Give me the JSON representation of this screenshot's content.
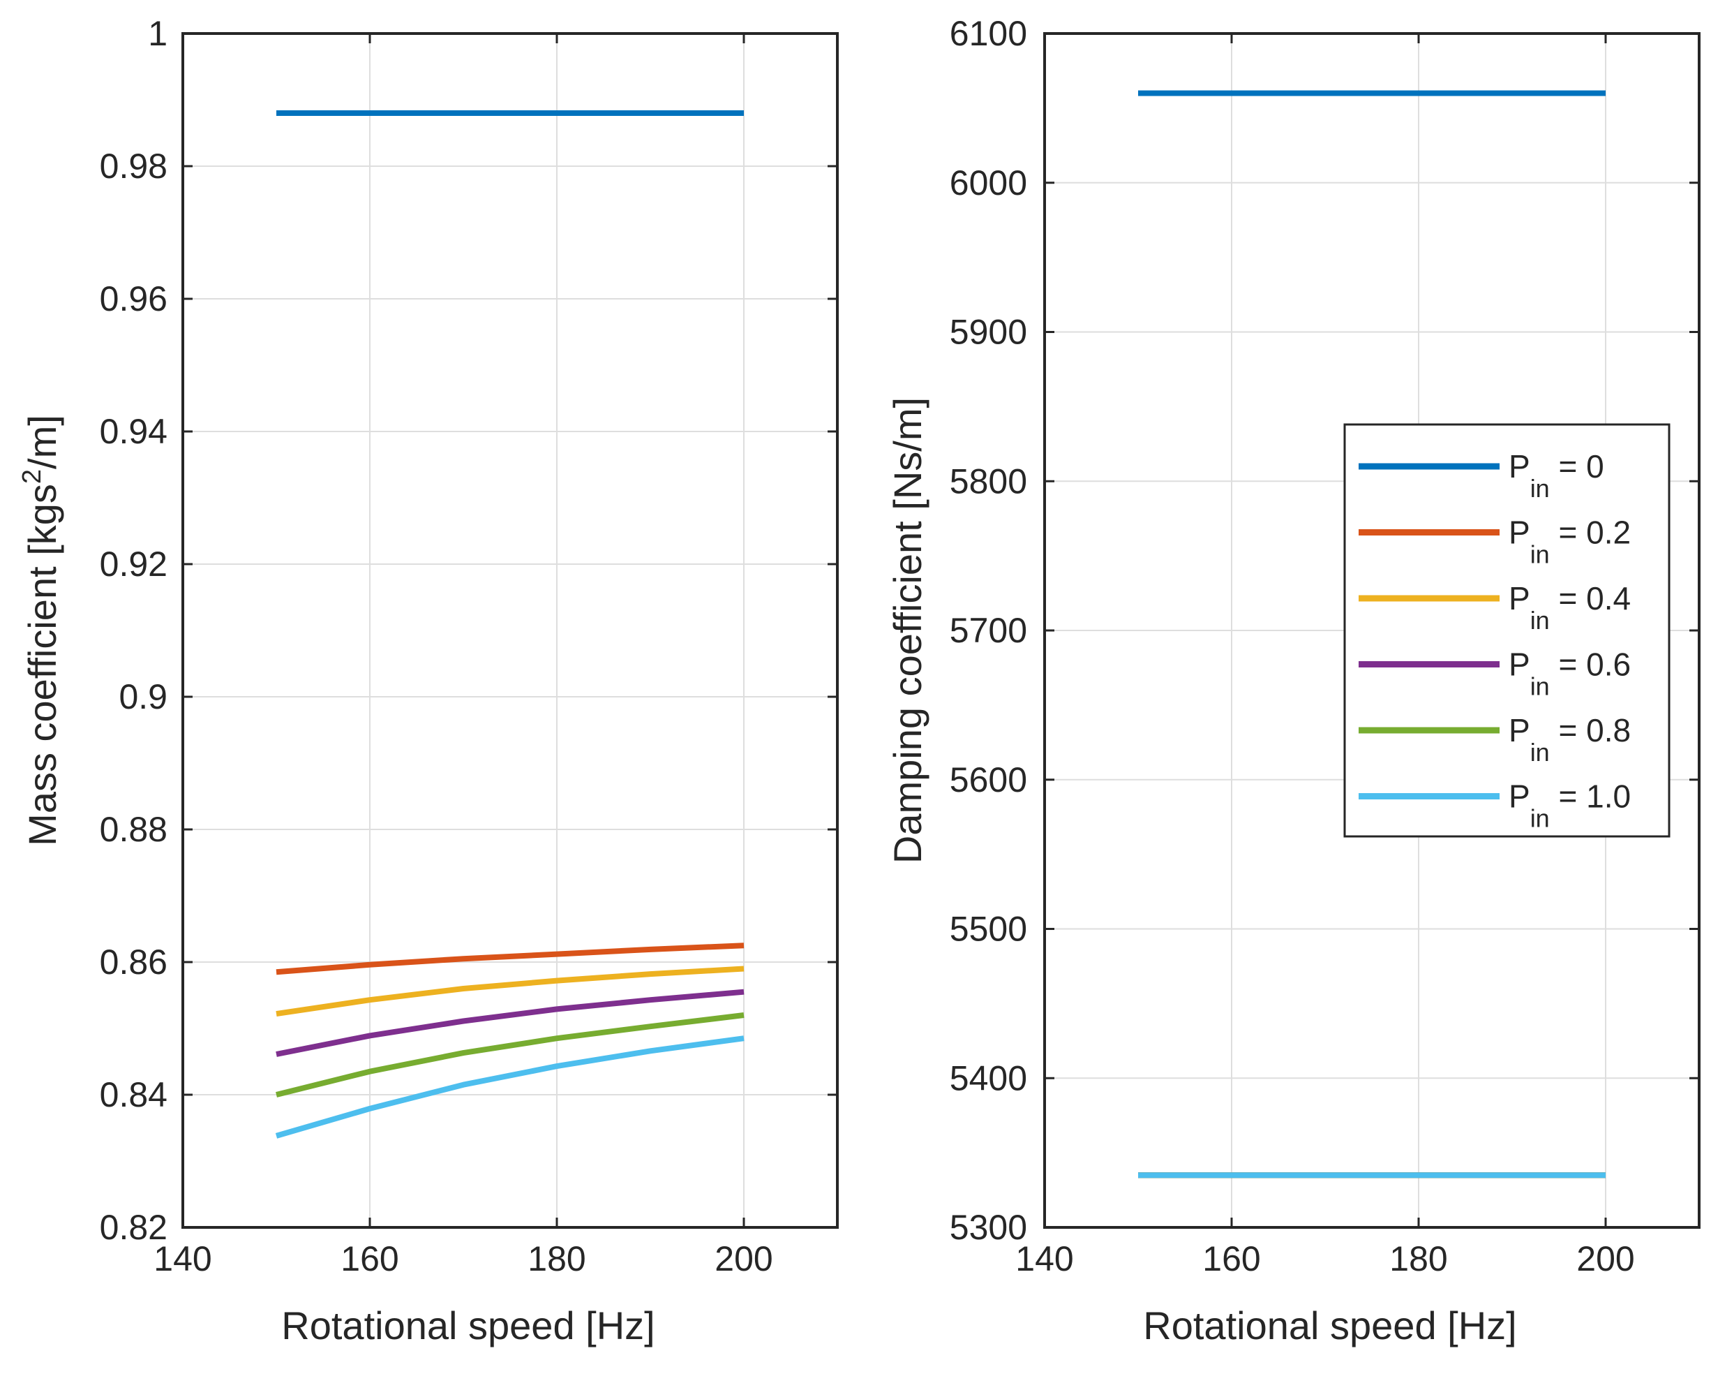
{
  "chart_data": [
    {
      "type": "line",
      "title": "",
      "xlabel": "Rotational speed [Hz]",
      "ylabel_prefix": "Mass coefficient [kgs",
      "ylabel_sup": "2",
      "ylabel_suffix": "/m]",
      "xlim": [
        140,
        210
      ],
      "ylim": [
        0.82,
        1.0
      ],
      "xticks": [
        140,
        160,
        180,
        200
      ],
      "xtick_labels": [
        "140",
        "160",
        "180",
        "200"
      ],
      "yticks": [
        0.82,
        0.84,
        0.86,
        0.88,
        0.9,
        0.92,
        0.94,
        0.96,
        0.98,
        1.0
      ],
      "ytick_labels": [
        "0.82",
        "0.84",
        "0.86",
        "0.88",
        "0.9",
        "0.92",
        "0.94",
        "0.96",
        "0.98",
        "1"
      ],
      "grid": true,
      "x": [
        150,
        160,
        170,
        180,
        190,
        200
      ],
      "series": [
        {
          "name": "P_in = 0",
          "color": "#0072BD",
          "values": [
            0.988,
            0.988,
            0.988,
            0.988,
            0.988,
            0.988
          ]
        },
        {
          "name": "P_in = 0.2",
          "color": "#D95319",
          "values": [
            0.8585,
            0.8596,
            0.8605,
            0.8612,
            0.8619,
            0.8625
          ]
        },
        {
          "name": "P_in = 0.4",
          "color": "#EDB120",
          "values": [
            0.8522,
            0.8543,
            0.856,
            0.8572,
            0.8582,
            0.859
          ]
        },
        {
          "name": "P_in = 0.6",
          "color": "#7E2F8E",
          "values": [
            0.8461,
            0.8489,
            0.8511,
            0.8529,
            0.8543,
            0.8555
          ]
        },
        {
          "name": "P_in = 0.8",
          "color": "#77AC30",
          "values": [
            0.84,
            0.8435,
            0.8463,
            0.8485,
            0.8503,
            0.852
          ]
        },
        {
          "name": "P_in = 1.0",
          "color": "#4DBEEE",
          "values": [
            0.8338,
            0.8379,
            0.8415,
            0.8443,
            0.8466,
            0.8485
          ]
        }
      ]
    },
    {
      "type": "line",
      "title": "",
      "xlabel": "Rotational speed [Hz]",
      "ylabel": "Damping coefficient [Ns/m]",
      "xlim": [
        140,
        210
      ],
      "ylim": [
        5300,
        6100
      ],
      "xticks": [
        140,
        160,
        180,
        200
      ],
      "xtick_labels": [
        "140",
        "160",
        "180",
        "200"
      ],
      "yticks": [
        5300,
        5400,
        5500,
        5600,
        5700,
        5800,
        5900,
        6000,
        6100
      ],
      "ytick_labels": [
        "5300",
        "5400",
        "5500",
        "5600",
        "5700",
        "5800",
        "5900",
        "6000",
        "6100"
      ],
      "grid": true,
      "x": [
        150,
        160,
        170,
        180,
        190,
        200
      ],
      "series": [
        {
          "name": "P_in = 0",
          "color": "#0072BD",
          "values": [
            6060,
            6060,
            6060,
            6060,
            6060,
            6060
          ]
        },
        {
          "name": "P_in = 0.2",
          "color": "#D95319",
          "values": [
            5335,
            5335,
            5335,
            5335,
            5335,
            5335
          ]
        },
        {
          "name": "P_in = 0.4",
          "color": "#EDB120",
          "values": [
            5335,
            5335,
            5335,
            5335,
            5335,
            5335
          ]
        },
        {
          "name": "P_in = 0.6",
          "color": "#7E2F8E",
          "values": [
            5335,
            5335,
            5335,
            5335,
            5335,
            5335
          ]
        },
        {
          "name": "P_in = 0.8",
          "color": "#77AC30",
          "values": [
            5335,
            5335,
            5335,
            5335,
            5335,
            5335
          ]
        },
        {
          "name": "P_in = 1.0",
          "color": "#4DBEEE",
          "values": [
            5335,
            5335,
            5335,
            5335,
            5335,
            5335
          ]
        }
      ],
      "legend": {
        "location": "right",
        "entries": [
          {
            "label_main": "P",
            "label_sub": "in",
            "label_rest": " = 0",
            "color": "#0072BD"
          },
          {
            "label_main": "P",
            "label_sub": "in",
            "label_rest": " = 0.2",
            "color": "#D95319"
          },
          {
            "label_main": "P",
            "label_sub": "in",
            "label_rest": " = 0.4",
            "color": "#EDB120"
          },
          {
            "label_main": "P",
            "label_sub": "in",
            "label_rest": " = 0.6",
            "color": "#7E2F8E"
          },
          {
            "label_main": "P",
            "label_sub": "in",
            "label_rest": " = 0.8",
            "color": "#77AC30"
          },
          {
            "label_main": "P",
            "label_sub": "in",
            "label_rest": " = 1.0",
            "color": "#4DBEEE"
          }
        ]
      }
    }
  ]
}
